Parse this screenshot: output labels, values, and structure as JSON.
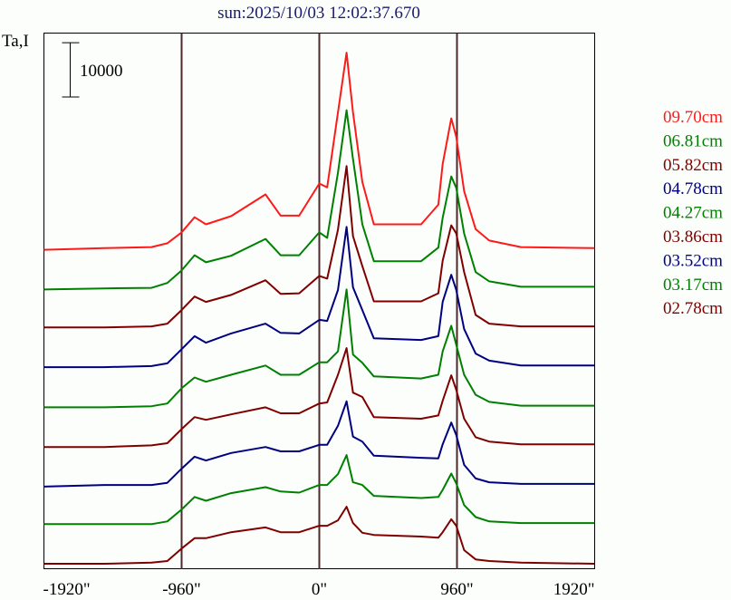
{
  "chart_data": {
    "type": "line",
    "title": "sun:2025/10/03 12:02:37.670",
    "ylabel": "Ta,I",
    "scale_bar": {
      "label": "10000",
      "value": 10000
    },
    "xlabel": "",
    "xlim": [
      -1920,
      1920
    ],
    "ylim": [
      0,
      98700
    ],
    "x_ticks": [
      -1920,
      -960,
      0,
      960,
      1920
    ],
    "x_tick_labels": [
      "-1920\"",
      "-960\"",
      "0\"",
      "960\"",
      "1920\""
    ],
    "reference_lines_x": [
      -960,
      0,
      960
    ],
    "grid": false,
    "legend_placement": "right",
    "x": [
      -1920,
      -1500,
      -1170,
      -1060,
      -960,
      -870,
      -790,
      -615,
      -375,
      -270,
      -140,
      0,
      55,
      130,
      190,
      235,
      300,
      380,
      710,
      830,
      860,
      920,
      955,
      1010,
      1090,
      1185,
      1405,
      1920
    ],
    "series": [
      {
        "name": "09.70cm",
        "color": "#ff1a1a",
        "offset": 58800,
        "values": [
          0,
          300,
          500,
          1200,
          3200,
          6000,
          4700,
          6200,
          10200,
          6300,
          6300,
          12200,
          11500,
          25300,
          36300,
          25300,
          12500,
          4700,
          4700,
          8300,
          15800,
          24200,
          20800,
          10800,
          3800,
          1700,
          500,
          300
        ]
      },
      {
        "name": "06.81cm",
        "color": "#008000",
        "offset": 51500,
        "values": [
          0,
          200,
          300,
          1200,
          3500,
          6300,
          5000,
          6200,
          9300,
          6300,
          6300,
          10500,
          9500,
          21500,
          33000,
          24000,
          12000,
          5200,
          5200,
          7700,
          13200,
          20800,
          18700,
          10300,
          3200,
          1500,
          500,
          500
        ]
      },
      {
        "name": "05.82cm",
        "color": "#800000",
        "offset": 44500,
        "values": [
          0,
          0,
          200,
          700,
          3200,
          5700,
          4700,
          6000,
          8700,
          6200,
          6300,
          9500,
          9000,
          18000,
          29700,
          16800,
          11300,
          4800,
          4800,
          6300,
          12300,
          18800,
          17300,
          10200,
          2300,
          700,
          200,
          200
        ]
      },
      {
        "name": "04.78cm",
        "color": "#000080",
        "offset": 37200,
        "values": [
          0,
          0,
          200,
          700,
          3300,
          5700,
          4500,
          6200,
          8000,
          6300,
          6200,
          8700,
          8500,
          14200,
          25800,
          14700,
          10500,
          5300,
          5000,
          5700,
          12000,
          17000,
          14200,
          7000,
          2500,
          1200,
          300,
          300
        ]
      },
      {
        "name": "04.27cm",
        "color": "#008000",
        "offset": 29800,
        "values": [
          0,
          0,
          200,
          700,
          3500,
          5500,
          4700,
          6000,
          7700,
          6000,
          6000,
          8300,
          8300,
          10300,
          21700,
          9700,
          8200,
          5700,
          5300,
          6000,
          10300,
          15000,
          11500,
          6000,
          2300,
          1000,
          300,
          300
        ]
      },
      {
        "name": "03.86cm",
        "color": "#800000",
        "offset": 22500,
        "values": [
          0,
          0,
          300,
          700,
          3300,
          5500,
          5000,
          6000,
          7300,
          6200,
          6200,
          8000,
          8200,
          13300,
          18200,
          10000,
          9200,
          5500,
          5200,
          5800,
          8500,
          13200,
          10500,
          5200,
          1800,
          1000,
          500,
          500
        ]
      },
      {
        "name": "03.52cm",
        "color": "#000080",
        "offset": 15200,
        "values": [
          0,
          300,
          300,
          700,
          3300,
          5500,
          4800,
          6200,
          7300,
          6500,
          6500,
          7700,
          7700,
          11200,
          15700,
          9200,
          8300,
          5700,
          5300,
          5200,
          7800,
          11800,
          9500,
          4000,
          1500,
          800,
          500,
          500
        ]
      },
      {
        "name": "03.17cm",
        "color": "#008000",
        "offset": 8300,
        "values": [
          0,
          0,
          0,
          500,
          2700,
          5000,
          4300,
          5700,
          6800,
          6000,
          5800,
          7200,
          7200,
          9200,
          12700,
          7700,
          7200,
          5200,
          4800,
          5000,
          6300,
          9300,
          7500,
          3500,
          1300,
          500,
          200,
          200
        ]
      },
      {
        "name": "02.78cm",
        "color": "#800000",
        "offset": 1000,
        "values": [
          0,
          0,
          200,
          500,
          2800,
          4700,
          4700,
          5800,
          6700,
          5800,
          5800,
          7000,
          7000,
          8000,
          10500,
          7500,
          5700,
          5300,
          5000,
          4800,
          5800,
          8200,
          7000,
          2500,
          800,
          500,
          200,
          0
        ]
      }
    ]
  },
  "colors": {
    "title": "#1a1a6e",
    "ref_line": "#4a2a2a",
    "axis": "#000000"
  }
}
